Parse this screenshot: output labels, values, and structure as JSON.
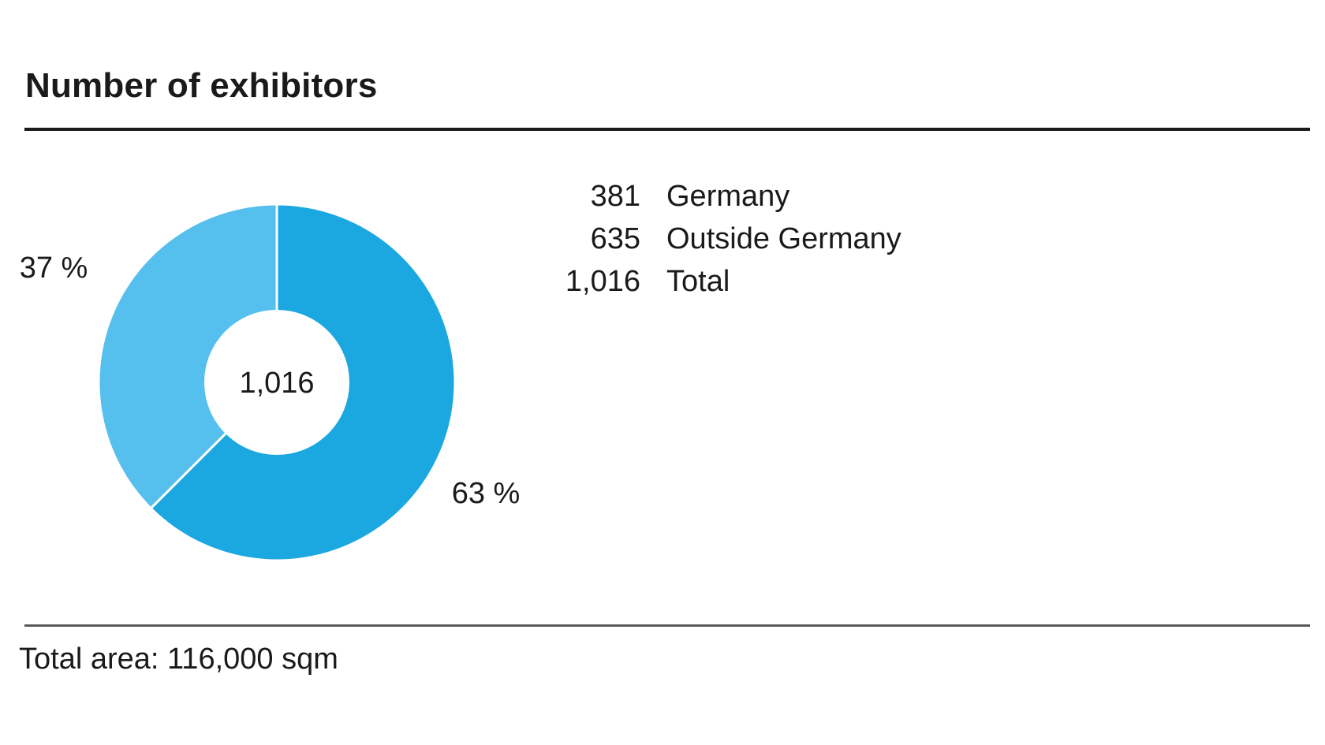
{
  "title": "Number of exhibitors",
  "chart_data": {
    "type": "pie",
    "title": "Number of exhibitors",
    "center_label": "1,016",
    "slices": [
      {
        "label": "Outside Germany",
        "value": 635,
        "percent_label": "63 %",
        "color": "#1ba8e0"
      },
      {
        "label": "Germany",
        "value": 381,
        "percent_label": "37 %",
        "color": "#55bfee"
      }
    ],
    "legend": [
      {
        "value": "381",
        "label": "Germany"
      },
      {
        "value": "635",
        "label": "Outside Germany"
      },
      {
        "value": "1,016",
        "label": "Total"
      }
    ]
  },
  "footer": {
    "text": "Total area: 116,000 sqm"
  }
}
